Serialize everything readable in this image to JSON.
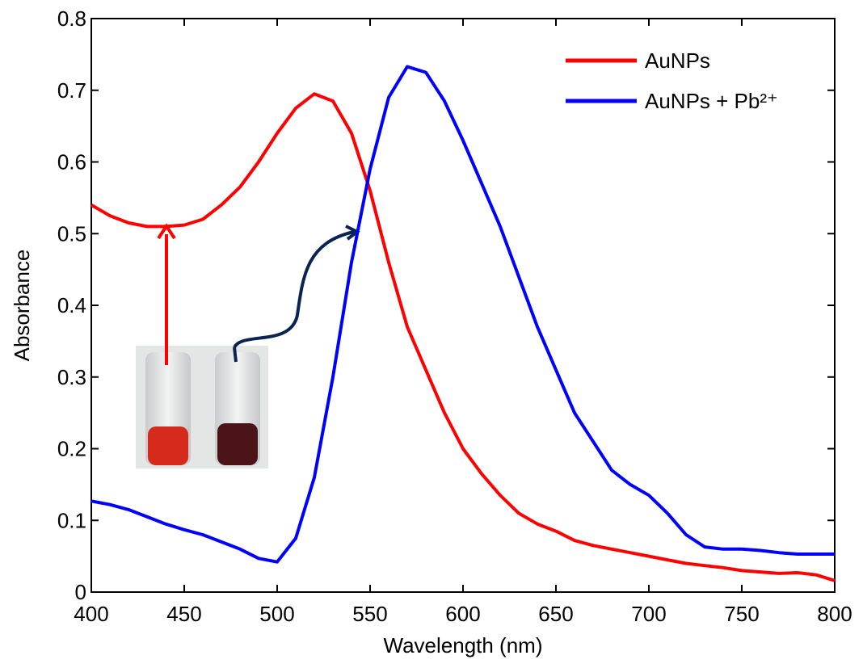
{
  "chart_data": {
    "type": "line",
    "x_label": "Wavelength (nm)",
    "y_label": "Absorbance",
    "x": [
      400,
      410,
      420,
      430,
      440,
      450,
      460,
      470,
      480,
      490,
      500,
      510,
      520,
      530,
      540,
      550,
      560,
      570,
      580,
      590,
      600,
      610,
      620,
      630,
      640,
      650,
      660,
      670,
      680,
      690,
      700,
      710,
      720,
      730,
      740,
      750,
      760,
      770,
      780,
      790,
      800
    ],
    "series": [
      {
        "name": "AuNPs",
        "color": "#ff0000",
        "values": [
          0.54,
          0.525,
          0.515,
          0.51,
          0.51,
          0.512,
          0.52,
          0.54,
          0.565,
          0.6,
          0.64,
          0.675,
          0.695,
          0.685,
          0.64,
          0.56,
          0.46,
          0.37,
          0.31,
          0.25,
          0.2,
          0.165,
          0.135,
          0.11,
          0.095,
          0.085,
          0.072,
          0.065,
          0.06,
          0.055,
          0.05,
          0.045,
          0.04,
          0.037,
          0.034,
          0.03,
          0.028,
          0.026,
          0.027,
          0.024,
          0.016
        ]
      },
      {
        "name": "AuNPs + Pb²⁺",
        "color": "#0000ff",
        "values": [
          0.127,
          0.122,
          0.115,
          0.105,
          0.095,
          0.087,
          0.08,
          0.07,
          0.06,
          0.047,
          0.042,
          0.075,
          0.16,
          0.3,
          0.46,
          0.59,
          0.69,
          0.733,
          0.725,
          0.685,
          0.63,
          0.57,
          0.51,
          0.44,
          0.37,
          0.31,
          0.25,
          0.21,
          0.17,
          0.15,
          0.135,
          0.11,
          0.08,
          0.063,
          0.06,
          0.06,
          0.058,
          0.055,
          0.053,
          0.053,
          0.053
        ]
      }
    ],
    "xlim": [
      400,
      800
    ],
    "xticks": [
      400,
      450,
      500,
      550,
      600,
      650,
      700,
      750,
      800
    ],
    "ylim": [
      0,
      0.8
    ],
    "yticks": [
      0,
      0.1,
      0.2,
      0.3,
      0.4,
      0.5,
      0.6,
      0.7,
      0.8
    ],
    "legend": "upper right",
    "grid": false
  }
}
